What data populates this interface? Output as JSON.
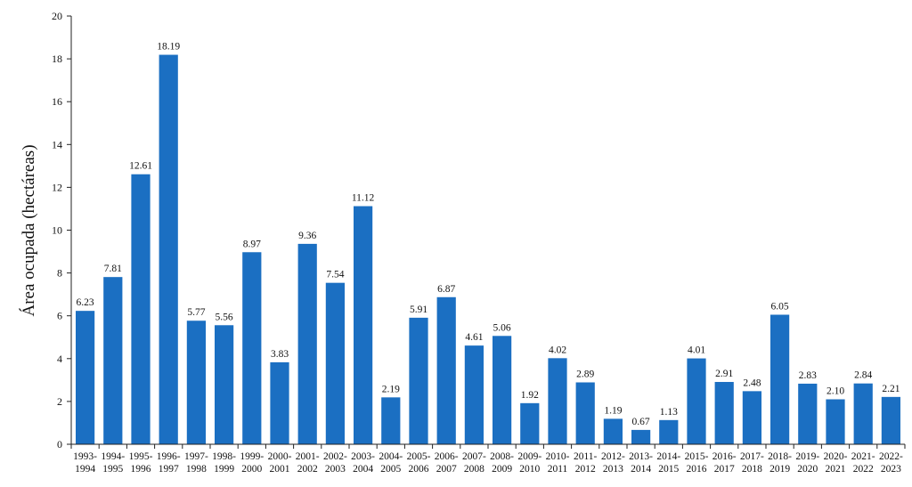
{
  "chart_data": {
    "type": "bar",
    "title": "",
    "xlabel": "",
    "ylabel": "Área ocupada (hectáreas)",
    "ylim": [
      0,
      20
    ],
    "yticks": [
      0,
      2,
      4,
      6,
      8,
      10,
      12,
      14,
      16,
      18,
      20
    ],
    "grid": false,
    "legend": "none",
    "bar_color": "#1b6fc2",
    "categories": [
      [
        "1993-",
        "1994"
      ],
      [
        "1994-",
        "1995"
      ],
      [
        "1995-",
        "1996"
      ],
      [
        "1996-",
        "1997"
      ],
      [
        "1997-",
        "1998"
      ],
      [
        "1998-",
        "1999"
      ],
      [
        "1999-",
        "2000"
      ],
      [
        "2000-",
        "2001"
      ],
      [
        "2001-",
        "2002"
      ],
      [
        "2002-",
        "2003"
      ],
      [
        "2003-",
        "2004"
      ],
      [
        "2004-",
        "2005"
      ],
      [
        "2005-",
        "2006"
      ],
      [
        "2006-",
        "2007"
      ],
      [
        "2007-",
        "2008"
      ],
      [
        "2008-",
        "2009"
      ],
      [
        "2009-",
        "2010"
      ],
      [
        "2010-",
        "2011"
      ],
      [
        "2011-",
        "2012"
      ],
      [
        "2012-",
        "2013"
      ],
      [
        "2013-",
        "2014"
      ],
      [
        "2014-",
        "2015"
      ],
      [
        "2015-",
        "2016"
      ],
      [
        "2016-",
        "2017"
      ],
      [
        "2017-",
        "2018"
      ],
      [
        "2018-",
        "2019"
      ],
      [
        "2019-",
        "2020"
      ],
      [
        "2020-",
        "2021"
      ],
      [
        "2021-",
        "2022"
      ],
      [
        "2022-",
        "2023"
      ]
    ],
    "values": [
      6.23,
      7.81,
      12.61,
      18.19,
      5.77,
      5.56,
      8.97,
      3.83,
      9.36,
      7.54,
      11.12,
      2.19,
      5.91,
      6.87,
      4.61,
      5.06,
      1.92,
      4.02,
      2.89,
      1.19,
      0.67,
      1.13,
      4.01,
      2.91,
      2.48,
      6.05,
      2.83,
      2.1,
      2.84,
      2.21
    ],
    "value_labels": [
      "6.23",
      "7.81",
      "12.61",
      "18.19",
      "5.77",
      "5.56",
      "8.97",
      "3.83",
      "9.36",
      "7.54",
      "11.12",
      "2.19",
      "5.91",
      "6.87",
      "4.61",
      "5.06",
      "1.92",
      "4.02",
      "2.89",
      "1.19",
      "0.67",
      "1.13",
      "4.01",
      "2.91",
      "2.48",
      "6.05",
      "2.83",
      "2.10",
      "2.84",
      "2.21"
    ]
  }
}
